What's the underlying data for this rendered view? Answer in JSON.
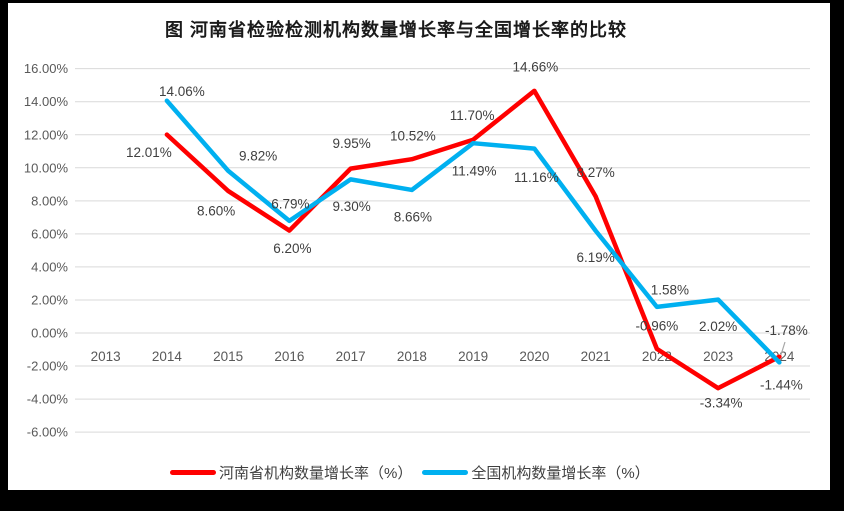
{
  "frame": {
    "background": "#000000",
    "panel_background": "#FFFFFF"
  },
  "chart_data": {
    "type": "line",
    "title": "图  河南省检验检测机构数量增长率与全国增长率的比较",
    "categories": [
      "2013",
      "2014",
      "2015",
      "2016",
      "2017",
      "2018",
      "2019",
      "2020",
      "2021",
      "2022",
      "2023",
      "2024"
    ],
    "series": [
      {
        "name": "河南省机构数量增长率（%）",
        "color": "#FF0000",
        "values": [
          null,
          12.01,
          8.6,
          6.2,
          9.95,
          10.52,
          11.7,
          14.66,
          8.27,
          -0.96,
          -3.34,
          -1.44
        ]
      },
      {
        "name": "全国机构数量增长率（%）",
        "color": "#00B0F0",
        "values": [
          null,
          14.06,
          9.82,
          6.79,
          9.3,
          8.66,
          11.49,
          11.16,
          6.19,
          1.58,
          2.02,
          -1.78
        ]
      }
    ],
    "ylim": [
      -6,
      16
    ],
    "ytick_step": 2,
    "ytick_labels": [
      "16.00%",
      "14.00%",
      "12.00%",
      "10.00%",
      "8.00%",
      "6.00%",
      "4.00%",
      "2.00%",
      "0.00%",
      "-2.00%",
      "-4.00%",
      "-6.00%"
    ],
    "data_labels": true,
    "data_label_format": "0.00%",
    "grid": true,
    "legend_position": "bottom",
    "colors": {
      "gridline": "#D9D9D9",
      "axis_text": "#595959",
      "data_label_text": "#404040",
      "legend_text": "#404040",
      "title_text": "#1A1A1A",
      "leader_line": "#A6A6A6"
    }
  }
}
